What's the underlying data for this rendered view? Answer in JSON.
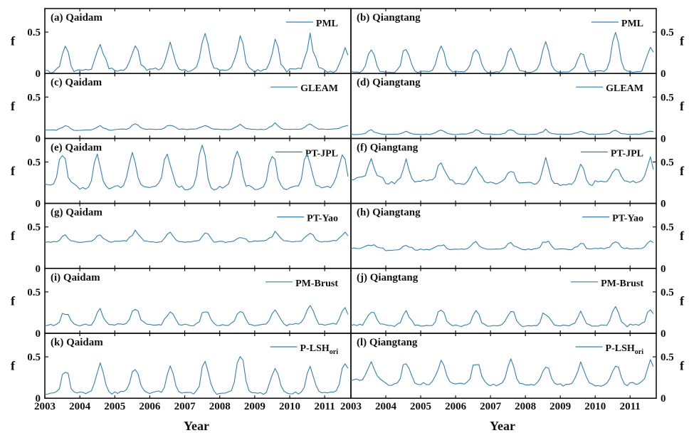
{
  "chart_data": {
    "type": "line",
    "xlabel": "Year",
    "ylabel": "f",
    "x_ticks": [
      "2003",
      "2004",
      "2005",
      "2006",
      "2007",
      "2008",
      "2009",
      "2010",
      "2011"
    ],
    "y_ticks": [
      "0",
      "0.5"
    ],
    "ylim": [
      0,
      0.75
    ],
    "xlim": [
      2003,
      2011.75
    ],
    "series_color": "#2f7fc2",
    "panels": [
      {
        "title": "(a) Qaidam",
        "legend": "PML",
        "legend_sub": "",
        "region": "Qaidam",
        "model": "PML",
        "row": 0,
        "col": 0,
        "pattern": {
          "trough": [
            0.02,
            0.05,
            0.04,
            0.05,
            0.04,
            0.05,
            0.03,
            0.05,
            0.03
          ],
          "peak": [
            0.33,
            0.38,
            0.38,
            0.34,
            0.44,
            0.4,
            0.38,
            0.42,
            0.34
          ],
          "noise": 0.05,
          "peak_month": 7
        }
      },
      {
        "title": "(b) Qiangtang",
        "legend": "PML",
        "legend_sub": "",
        "region": "Qiangtang",
        "model": "PML",
        "row": 0,
        "col": 1,
        "pattern": {
          "trough": [
            0.02,
            0.02,
            0.02,
            0.02,
            0.02,
            0.02,
            0.02,
            0.03,
            0.02
          ],
          "peak": [
            0.28,
            0.33,
            0.35,
            0.32,
            0.34,
            0.35,
            0.26,
            0.47,
            0.34
          ],
          "noise": 0.03,
          "peak_month": 7
        }
      },
      {
        "title": "(c) Qaidam",
        "legend": "GLEAM",
        "legend_sub": "",
        "region": "Qaidam",
        "model": "GLEAM",
        "row": 1,
        "col": 0,
        "pattern": {
          "trough": [
            0.1,
            0.1,
            0.11,
            0.11,
            0.11,
            0.11,
            0.11,
            0.11,
            0.11
          ],
          "peak": [
            0.15,
            0.15,
            0.18,
            0.16,
            0.16,
            0.16,
            0.18,
            0.17,
            0.16
          ],
          "noise": 0.01,
          "peak_month": 7
        }
      },
      {
        "title": "(d) Qiangtang",
        "legend": "GLEAM",
        "legend_sub": "",
        "region": "Qiangtang",
        "model": "GLEAM",
        "row": 1,
        "col": 1,
        "pattern": {
          "trough": [
            0.05,
            0.05,
            0.05,
            0.05,
            0.05,
            0.05,
            0.05,
            0.05,
            0.05
          ],
          "peak": [
            0.1,
            0.09,
            0.1,
            0.1,
            0.1,
            0.1,
            0.09,
            0.1,
            0.1
          ],
          "noise": 0.01,
          "peak_month": 7
        }
      },
      {
        "title": "(e) Qaidam",
        "legend": "PT-JPL",
        "legend_sub": "",
        "region": "Qaidam",
        "model": "PT-JPL",
        "row": 2,
        "col": 0,
        "pattern": {
          "trough": [
            0.22,
            0.18,
            0.2,
            0.2,
            0.17,
            0.2,
            0.18,
            0.2,
            0.2
          ],
          "peak": [
            0.62,
            0.58,
            0.58,
            0.62,
            0.68,
            0.6,
            0.61,
            0.6,
            0.6
          ],
          "noise": 0.04,
          "peak_month": 6
        }
      },
      {
        "title": "(f) Qiangtang",
        "legend": "PT-JPL",
        "legend_sub": "",
        "region": "Qiangtang",
        "model": "PT-JPL",
        "row": 2,
        "col": 1,
        "pattern": {
          "trough": [
            0.3,
            0.25,
            0.28,
            0.24,
            0.25,
            0.24,
            0.22,
            0.26,
            0.26
          ],
          "peak": [
            0.5,
            0.5,
            0.46,
            0.46,
            0.42,
            0.5,
            0.48,
            0.45,
            0.52
          ],
          "noise": 0.04,
          "peak_month": 7
        }
      },
      {
        "title": "(g) Qaidam",
        "legend": "PT-Yao",
        "legend_sub": "",
        "region": "Qaidam",
        "model": "PT-Yao",
        "row": 3,
        "col": 0,
        "pattern": {
          "trough": [
            0.32,
            0.32,
            0.33,
            0.32,
            0.32,
            0.32,
            0.33,
            0.32,
            0.33
          ],
          "peak": [
            0.38,
            0.4,
            0.44,
            0.43,
            0.43,
            0.4,
            0.42,
            0.45,
            0.42
          ],
          "noise": 0.02,
          "peak_month": 7
        }
      },
      {
        "title": "(h) Qiangtang",
        "legend": "PT-Yao",
        "legend_sub": "",
        "region": "Qiangtang",
        "model": "PT-Yao",
        "row": 3,
        "col": 1,
        "pattern": {
          "trough": [
            0.24,
            0.22,
            0.23,
            0.23,
            0.23,
            0.23,
            0.23,
            0.24,
            0.24
          ],
          "peak": [
            0.3,
            0.29,
            0.3,
            0.3,
            0.3,
            0.34,
            0.3,
            0.3,
            0.32
          ],
          "noise": 0.02,
          "peak_month": 7
        }
      },
      {
        "title": "(i) Qaidam",
        "legend": "PM-Brust",
        "legend_sub": "",
        "region": "Qaidam",
        "model": "PM-Brust",
        "row": 4,
        "col": 0,
        "pattern": {
          "trough": [
            0.1,
            0.1,
            0.11,
            0.1,
            0.1,
            0.1,
            0.1,
            0.11,
            0.11
          ],
          "peak": [
            0.26,
            0.26,
            0.32,
            0.28,
            0.3,
            0.3,
            0.32,
            0.32,
            0.3
          ],
          "noise": 0.03,
          "peak_month": 7
        }
      },
      {
        "title": "(j) Qiangtang",
        "legend": "PM-Brust",
        "legend_sub": "",
        "region": "Qiangtang",
        "model": "PM-Brust",
        "row": 4,
        "col": 1,
        "pattern": {
          "trough": [
            0.1,
            0.09,
            0.09,
            0.09,
            0.09,
            0.09,
            0.09,
            0.09,
            0.1
          ],
          "peak": [
            0.28,
            0.26,
            0.3,
            0.27,
            0.28,
            0.26,
            0.26,
            0.32,
            0.28
          ],
          "noise": 0.03,
          "peak_month": 7
        }
      },
      {
        "title": "(k) Qaidam",
        "legend": "P-LSH",
        "legend_sub": "ori",
        "region": "Qaidam",
        "model": "P-LSHori",
        "row": 5,
        "col": 0,
        "pattern": {
          "trough": [
            0.06,
            0.06,
            0.07,
            0.07,
            0.06,
            0.06,
            0.06,
            0.06,
            0.06
          ],
          "peak": [
            0.34,
            0.44,
            0.36,
            0.35,
            0.44,
            0.55,
            0.4,
            0.4,
            0.42
          ],
          "noise": 0.04,
          "peak_month": 7
        }
      },
      {
        "title": "(l) Qiangtang",
        "legend": "P-LSH",
        "legend_sub": "ori",
        "region": "Qiangtang",
        "model": "P-LSHori",
        "row": 5,
        "col": 1,
        "pattern": {
          "trough": [
            0.22,
            0.17,
            0.18,
            0.18,
            0.16,
            0.16,
            0.16,
            0.16,
            0.18
          ],
          "peak": [
            0.46,
            0.46,
            0.46,
            0.44,
            0.44,
            0.42,
            0.42,
            0.42,
            0.48
          ],
          "noise": 0.04,
          "peak_month": 7
        }
      }
    ]
  }
}
